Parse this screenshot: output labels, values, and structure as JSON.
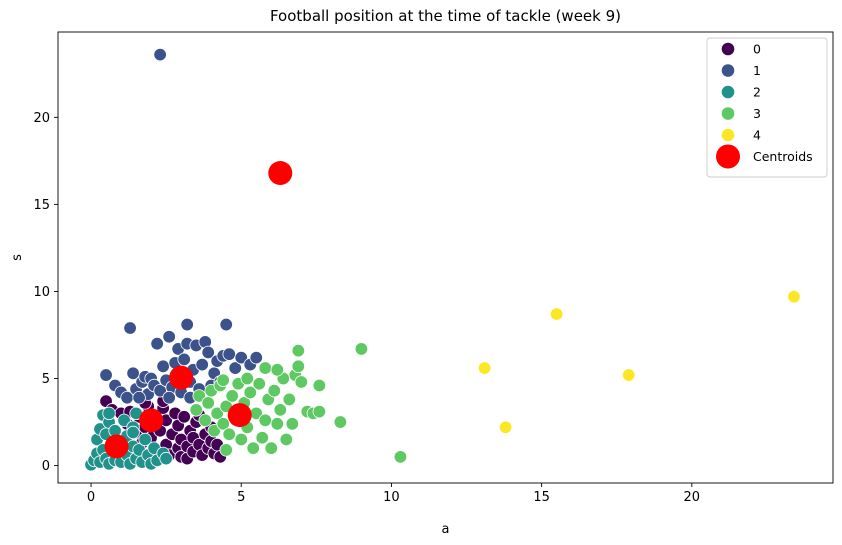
{
  "chart_data": {
    "type": "scatter",
    "title": "Football position at the time of tackle (week 9)",
    "xlabel": "a",
    "ylabel": "s",
    "xlim": [
      -1.1,
      24.7
    ],
    "ylim": [
      -1.0,
      24.9
    ],
    "xticks": [
      0,
      5,
      10,
      15,
      20
    ],
    "yticks": [
      0,
      5,
      10,
      15,
      20
    ],
    "grid": false,
    "legend_position": "top-right",
    "series": [
      {
        "name": "0",
        "color": "#440154",
        "points": [
          [
            0.5,
            3.7
          ],
          [
            0.7,
            3.2
          ],
          [
            1.0,
            3.0
          ],
          [
            1.2,
            2.4
          ],
          [
            1.3,
            3.1
          ],
          [
            1.5,
            1.9
          ],
          [
            1.6,
            2.8
          ],
          [
            1.7,
            1.3
          ],
          [
            1.8,
            2.2
          ],
          [
            1.9,
            3.4
          ],
          [
            2.0,
            1.6
          ],
          [
            2.1,
            2.9
          ],
          [
            2.2,
            0.9
          ],
          [
            2.3,
            2.0
          ],
          [
            2.4,
            3.3
          ],
          [
            2.5,
            1.2
          ],
          [
            2.5,
            2.6
          ],
          [
            2.6,
            0.6
          ],
          [
            2.7,
            1.8
          ],
          [
            2.8,
            3.0
          ],
          [
            2.9,
            1.0
          ],
          [
            2.9,
            2.3
          ],
          [
            3.0,
            0.5
          ],
          [
            3.0,
            1.5
          ],
          [
            3.1,
            2.8
          ],
          [
            3.2,
            0.4
          ],
          [
            3.2,
            1.1
          ],
          [
            3.3,
            2.0
          ],
          [
            3.4,
            0.8
          ],
          [
            3.4,
            1.6
          ],
          [
            3.5,
            2.5
          ],
          [
            3.6,
            1.2
          ],
          [
            3.7,
            0.6
          ],
          [
            3.8,
            1.8
          ],
          [
            3.9,
            1.0
          ],
          [
            4.0,
            1.4
          ],
          [
            4.1,
            0.7
          ],
          [
            4.2,
            1.2
          ],
          [
            4.3,
            0.5
          ],
          [
            2.4,
            3.7
          ],
          [
            1.8,
            3.6
          ],
          [
            3.6,
            2.9
          ],
          [
            4.0,
            2.2
          ]
        ]
      },
      {
        "name": "1",
        "color": "#3b528b",
        "points": [
          [
            2.3,
            23.6
          ],
          [
            0.5,
            5.2
          ],
          [
            0.8,
            4.6
          ],
          [
            1.0,
            4.2
          ],
          [
            1.2,
            3.9
          ],
          [
            1.3,
            7.9
          ],
          [
            1.4,
            5.3
          ],
          [
            1.5,
            4.4
          ],
          [
            1.7,
            4.8
          ],
          [
            1.8,
            5.1
          ],
          [
            1.9,
            4.1
          ],
          [
            2.0,
            5.0
          ],
          [
            2.1,
            4.6
          ],
          [
            2.2,
            7.0
          ],
          [
            2.3,
            4.3
          ],
          [
            2.4,
            5.7
          ],
          [
            2.5,
            4.9
          ],
          [
            2.6,
            7.4
          ],
          [
            2.7,
            4.5
          ],
          [
            2.8,
            5.9
          ],
          [
            2.9,
            6.7
          ],
          [
            3.0,
            4.2
          ],
          [
            3.1,
            6.1
          ],
          [
            3.2,
            7.0
          ],
          [
            3.2,
            8.1
          ],
          [
            3.3,
            4.8
          ],
          [
            3.4,
            5.5
          ],
          [
            3.5,
            6.9
          ],
          [
            3.6,
            4.4
          ],
          [
            3.7,
            5.8
          ],
          [
            3.8,
            7.1
          ],
          [
            3.9,
            6.5
          ],
          [
            4.0,
            4.6
          ],
          [
            4.1,
            5.3
          ],
          [
            4.2,
            6.0
          ],
          [
            4.3,
            4.8
          ],
          [
            4.4,
            6.3
          ],
          [
            4.5,
            8.1
          ],
          [
            4.6,
            6.4
          ],
          [
            4.8,
            5.6
          ],
          [
            5.0,
            6.2
          ],
          [
            5.3,
            5.8
          ],
          [
            5.5,
            6.2
          ],
          [
            3.3,
            3.9
          ],
          [
            2.6,
            3.9
          ],
          [
            1.6,
            3.9
          ]
        ]
      },
      {
        "name": "2",
        "color": "#21918c",
        "points": [
          [
            0.0,
            0.05
          ],
          [
            0.1,
            0.3
          ],
          [
            0.2,
            0.7
          ],
          [
            0.2,
            1.5
          ],
          [
            0.3,
            0.2
          ],
          [
            0.3,
            2.1
          ],
          [
            0.4,
            0.9
          ],
          [
            0.4,
            2.9
          ],
          [
            0.5,
            0.4
          ],
          [
            0.5,
            1.8
          ],
          [
            0.6,
            0.1
          ],
          [
            0.6,
            2.5
          ],
          [
            0.7,
            1.2
          ],
          [
            0.8,
            0.3
          ],
          [
            0.8,
            2.0
          ],
          [
            0.9,
            0.8
          ],
          [
            1.0,
            1.4
          ],
          [
            1.0,
            0.2
          ],
          [
            1.1,
            2.6
          ],
          [
            1.2,
            0.6
          ],
          [
            1.2,
            1.7
          ],
          [
            1.3,
            0.1
          ],
          [
            1.4,
            1.1
          ],
          [
            1.4,
            2.2
          ],
          [
            1.5,
            0.4
          ],
          [
            1.5,
            3.0
          ],
          [
            1.6,
            0.9
          ],
          [
            1.7,
            0.2
          ],
          [
            1.8,
            1.5
          ],
          [
            1.9,
            0.6
          ],
          [
            2.0,
            0.1
          ],
          [
            2.1,
            1.0
          ],
          [
            2.2,
            0.3
          ],
          [
            2.4,
            0.7
          ],
          [
            2.5,
            0.4
          ],
          [
            0.6,
            3.0
          ],
          [
            1.4,
            1.9
          ]
        ]
      },
      {
        "name": "3",
        "color": "#5ec962",
        "points": [
          [
            3.5,
            3.2
          ],
          [
            3.6,
            4.0
          ],
          [
            3.8,
            2.6
          ],
          [
            3.9,
            3.6
          ],
          [
            4.0,
            4.3
          ],
          [
            4.1,
            2.0
          ],
          [
            4.2,
            3.0
          ],
          [
            4.3,
            4.6
          ],
          [
            4.4,
            2.4
          ],
          [
            4.5,
            3.4
          ],
          [
            4.5,
            0.9
          ],
          [
            4.6,
            1.8
          ],
          [
            4.7,
            4.0
          ],
          [
            4.8,
            2.8
          ],
          [
            4.9,
            4.7
          ],
          [
            5.0,
            1.5
          ],
          [
            5.1,
            3.6
          ],
          [
            5.2,
            2.2
          ],
          [
            5.3,
            4.2
          ],
          [
            5.4,
            1.0
          ],
          [
            5.5,
            3.0
          ],
          [
            5.6,
            4.7
          ],
          [
            5.7,
            1.6
          ],
          [
            5.8,
            2.6
          ],
          [
            5.9,
            3.8
          ],
          [
            6.0,
            1.0
          ],
          [
            6.1,
            4.3
          ],
          [
            6.2,
            2.4
          ],
          [
            6.3,
            3.2
          ],
          [
            6.4,
            5.0
          ],
          [
            6.5,
            1.5
          ],
          [
            6.6,
            3.8
          ],
          [
            6.7,
            2.4
          ],
          [
            6.8,
            5.2
          ],
          [
            6.9,
            6.6
          ],
          [
            6.9,
            5.7
          ],
          [
            7.0,
            4.8
          ],
          [
            7.2,
            3.1
          ],
          [
            7.4,
            3.0
          ],
          [
            7.6,
            3.1
          ],
          [
            7.6,
            4.6
          ],
          [
            8.3,
            2.5
          ],
          [
            9.0,
            6.7
          ],
          [
            10.3,
            0.5
          ],
          [
            5.2,
            5.0
          ],
          [
            5.8,
            5.6
          ],
          [
            4.4,
            4.9
          ],
          [
            6.2,
            5.5
          ]
        ]
      },
      {
        "name": "4",
        "color": "#fde725",
        "points": [
          [
            13.1,
            5.6
          ],
          [
            13.8,
            2.2
          ],
          [
            15.5,
            8.7
          ],
          [
            17.9,
            5.2
          ],
          [
            23.4,
            9.7
          ]
        ]
      },
      {
        "name": "Centroids",
        "color": "#ff0000",
        "points": [
          [
            0.85,
            1.1
          ],
          [
            2.0,
            2.6
          ],
          [
            3.0,
            5.05
          ],
          [
            4.95,
            2.9
          ],
          [
            6.3,
            16.8
          ]
        ]
      }
    ]
  }
}
